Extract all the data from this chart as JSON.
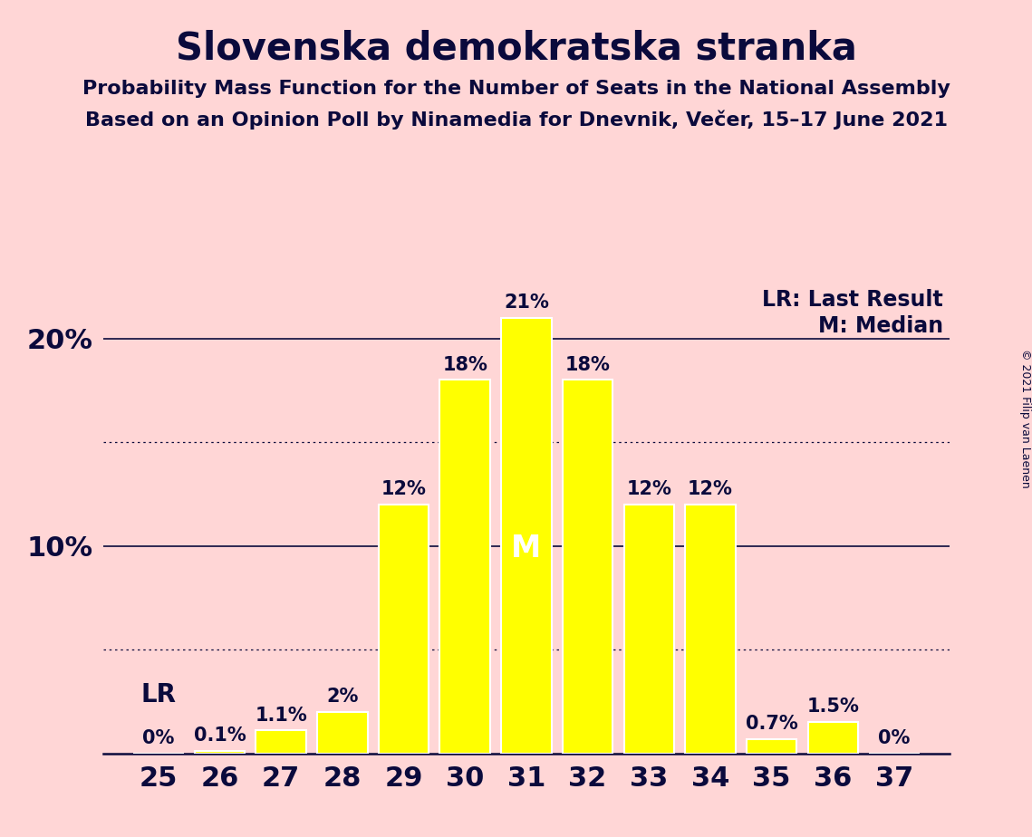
{
  "title": "Slovenska demokratska stranka",
  "subtitle1": "Probability Mass Function for the Number of Seats in the National Assembly",
  "subtitle2": "Based on an Opinion Poll by Ninamedia for Dnevnik, Večer, 15–17 June 2021",
  "copyright": "© 2021 Filip van Laenen",
  "seats": [
    25,
    26,
    27,
    28,
    29,
    30,
    31,
    32,
    33,
    34,
    35,
    36,
    37
  ],
  "probabilities": [
    0.0,
    0.1,
    1.1,
    2.0,
    12.0,
    18.0,
    21.0,
    18.0,
    12.0,
    12.0,
    0.7,
    1.5,
    0.0
  ],
  "labels": [
    "0%",
    "0.1%",
    "1.1%",
    "2%",
    "12%",
    "18%",
    "21%",
    "18%",
    "12%",
    "12%",
    "0.7%",
    "1.5%",
    "0%"
  ],
  "bar_color": "#FFFF00",
  "bar_edge_color": "#FFFFFF",
  "background_color": "#FFD6D6",
  "text_color": "#0A0A3C",
  "median_seat": 31,
  "median_label": "M",
  "lr_seat": 25,
  "lr_label": "LR",
  "solid_lines": [
    10.0,
    20.0
  ],
  "dotted_lines": [
    5.0,
    15.0
  ],
  "ylim": [
    0,
    23
  ],
  "title_fontsize": 30,
  "subtitle_fontsize": 16,
  "label_fontsize": 15,
  "axis_fontsize": 22,
  "legend_fontsize": 17,
  "copyright_fontsize": 9,
  "bar_width": 0.82
}
